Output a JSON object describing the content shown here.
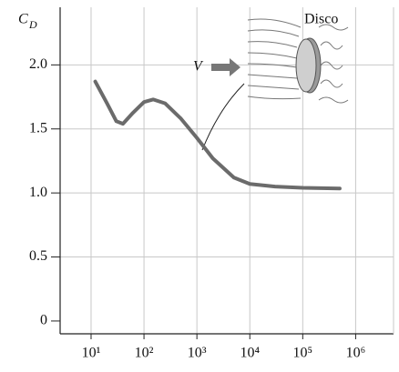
{
  "chart_data": {
    "type": "line",
    "ylabel": {
      "text": "C",
      "subscript": "D"
    },
    "annotation": "Disco",
    "velocity_label": "V",
    "x": [
      12,
      20,
      30,
      40,
      60,
      100,
      150,
      250,
      500,
      1000,
      2000,
      5000,
      10000,
      30000,
      100000,
      500000
    ],
    "series": [
      {
        "color": "#6b6b6b",
        "values": [
          1.87,
          1.7,
          1.56,
          1.54,
          1.62,
          1.71,
          1.73,
          1.7,
          1.58,
          1.43,
          1.27,
          1.12,
          1.07,
          1.05,
          1.04,
          1.035
        ]
      }
    ],
    "xscale": "log",
    "xlim": [
      2.6,
      5200000
    ],
    "ylim": [
      -0.1,
      2.45
    ],
    "xticks": [
      {
        "value": 10,
        "label": "10¹"
      },
      {
        "value": 100,
        "label": "10²"
      },
      {
        "value": 1000,
        "label": "10³"
      },
      {
        "value": 10000,
        "label": "10⁴"
      },
      {
        "value": 100000,
        "label": "10⁵"
      },
      {
        "value": 1000000,
        "label": "10⁶"
      }
    ],
    "yticks": [
      0,
      {
        "value": 0.5,
        "label": "0.5"
      },
      {
        "value": 1,
        "label": "1.0"
      },
      {
        "value": 1.5,
        "label": "1.5"
      },
      {
        "value": 2,
        "label": "2.0"
      }
    ],
    "grid": true
  }
}
